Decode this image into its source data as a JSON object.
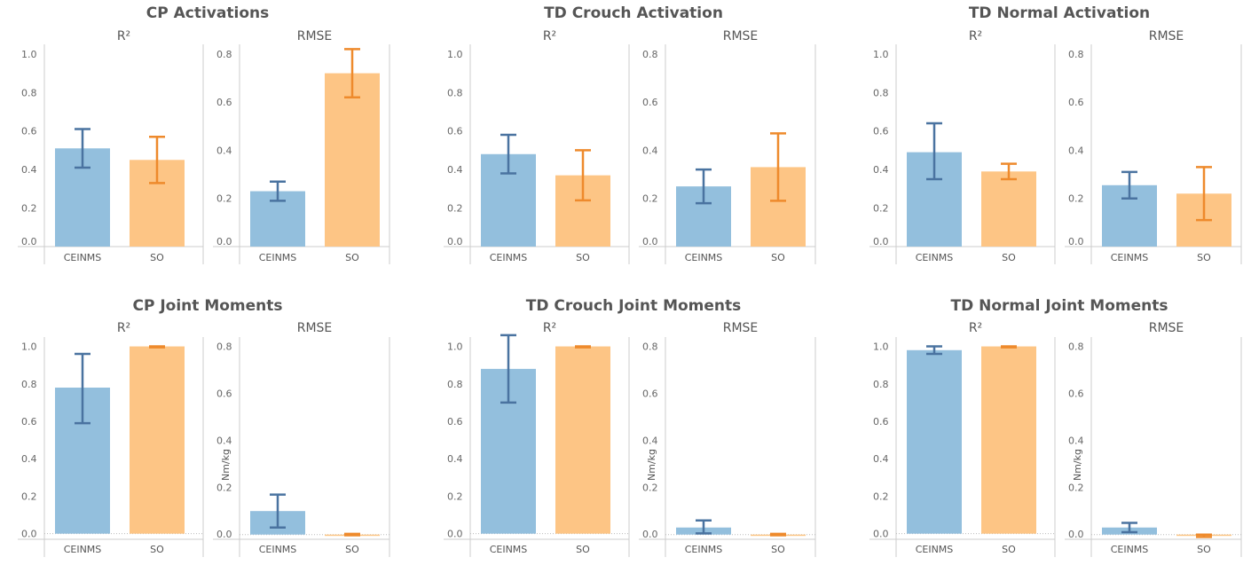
{
  "colors": {
    "ceinms_bar": "#93BFDD",
    "ceinms_err": "#4A73A0",
    "so_bar": "#FDC585",
    "so_err": "#EE8A2C",
    "axis": "#cccccc",
    "text": "#555555"
  },
  "chart_data": [
    {
      "type": "bar",
      "title": "CP Activations",
      "panels": [
        {
          "title": "R²",
          "ylabel": "",
          "ylim": [
            0,
            1.05
          ],
          "yticks": [
            "0.0",
            "0.2",
            "0.4",
            "0.6",
            "0.8",
            "1.0"
          ],
          "categories": [
            "CEINMS",
            "SO"
          ],
          "values": [
            0.51,
            0.45
          ],
          "err_low": [
            0.41,
            0.33
          ],
          "err_high": [
            0.61,
            0.57
          ]
        },
        {
          "title": "RMSE",
          "ylabel": "",
          "ylim": [
            0,
            0.84
          ],
          "yticks": [
            "0.0",
            "0.2",
            "0.4",
            "0.6",
            "0.8"
          ],
          "categories": [
            "CEINMS",
            "SO"
          ],
          "values": [
            0.23,
            0.72
          ],
          "err_low": [
            0.19,
            0.62
          ],
          "err_high": [
            0.27,
            0.82
          ]
        }
      ]
    },
    {
      "type": "bar",
      "title": "TD Crouch Activation",
      "panels": [
        {
          "title": "R²",
          "ylabel": "",
          "ylim": [
            0,
            1.05
          ],
          "yticks": [
            "0.0",
            "0.2",
            "0.4",
            "0.6",
            "0.8",
            "1.0"
          ],
          "categories": [
            "CEINMS",
            "SO"
          ],
          "values": [
            0.48,
            0.37
          ],
          "err_low": [
            0.38,
            0.24
          ],
          "err_high": [
            0.58,
            0.5
          ]
        },
        {
          "title": "RMSE",
          "ylabel": "",
          "ylim": [
            0,
            0.84
          ],
          "yticks": [
            "0.0",
            "0.2",
            "0.4",
            "0.6",
            "0.8"
          ],
          "categories": [
            "CEINMS",
            "SO"
          ],
          "values": [
            0.25,
            0.33
          ],
          "err_low": [
            0.18,
            0.19
          ],
          "err_high": [
            0.32,
            0.47
          ]
        }
      ]
    },
    {
      "type": "bar",
      "title": "TD Normal Activation",
      "panels": [
        {
          "title": "R²",
          "ylabel": "",
          "ylim": [
            0,
            1.05
          ],
          "yticks": [
            "0.0",
            "0.2",
            "0.4",
            "0.6",
            "0.8",
            "1.0"
          ],
          "categories": [
            "CEINMS",
            "SO"
          ],
          "values": [
            0.49,
            0.39
          ],
          "err_low": [
            0.35,
            0.35
          ],
          "err_high": [
            0.64,
            0.43
          ]
        },
        {
          "title": "RMSE",
          "ylabel": "",
          "ylim": [
            0,
            0.84
          ],
          "yticks": [
            "0.0",
            "0.2",
            "0.4",
            "0.6",
            "0.8"
          ],
          "categories": [
            "CEINMS",
            "SO"
          ],
          "values": [
            0.255,
            0.22
          ],
          "err_low": [
            0.2,
            0.11
          ],
          "err_high": [
            0.31,
            0.33
          ]
        }
      ]
    },
    {
      "type": "bar",
      "title": "CP Joint Moments",
      "panels": [
        {
          "title": "R²",
          "ylabel": "",
          "ylim": [
            -0.03,
            1.05
          ],
          "yticks": [
            "0.0",
            "0.2",
            "0.4",
            "0.6",
            "0.8",
            "1.0"
          ],
          "categories": [
            "CEINMS",
            "SO"
          ],
          "values": [
            0.78,
            1.0
          ],
          "err_low": [
            0.59,
            0.995
          ],
          "err_high": [
            0.96,
            1.0
          ]
        },
        {
          "title": "RMSE",
          "ylabel": "Nm/kg",
          "ylim": [
            -0.02,
            0.84
          ],
          "yticks": [
            "0.0",
            "0.2",
            "0.4",
            "0.6",
            "0.8"
          ],
          "categories": [
            "CEINMS",
            "SO"
          ],
          "values": [
            0.1,
            0.0
          ],
          "err_low": [
            0.03,
            -0.003
          ],
          "err_high": [
            0.17,
            0.003
          ]
        }
      ]
    },
    {
      "type": "bar",
      "title": "TD Crouch Joint Moments",
      "panels": [
        {
          "title": "R²",
          "ylabel": "",
          "ylim": [
            -0.03,
            1.05
          ],
          "yticks": [
            "0.0",
            "0.2",
            "0.4",
            "0.6",
            "0.8",
            "1.0"
          ],
          "categories": [
            "CEINMS",
            "SO"
          ],
          "values": [
            0.88,
            1.0
          ],
          "err_low": [
            0.7,
            0.995
          ],
          "err_high": [
            1.06,
            1.0
          ]
        },
        {
          "title": "RMSE",
          "ylabel": "Nm/kg",
          "ylim": [
            -0.02,
            0.84
          ],
          "yticks": [
            "0.0",
            "0.2",
            "0.4",
            "0.6",
            "0.8"
          ],
          "categories": [
            "CEINMS",
            "SO"
          ],
          "values": [
            0.03,
            0.0
          ],
          "err_low": [
            0.005,
            -0.003
          ],
          "err_high": [
            0.06,
            0.003
          ]
        }
      ]
    },
    {
      "type": "bar",
      "title": "TD Normal Joint Moments",
      "panels": [
        {
          "title": "R²",
          "ylabel": "",
          "ylim": [
            -0.03,
            1.05
          ],
          "yticks": [
            "0.0",
            "0.2",
            "0.4",
            "0.6",
            "0.8",
            "1.0"
          ],
          "categories": [
            "CEINMS",
            "SO"
          ],
          "values": [
            0.98,
            1.0
          ],
          "err_low": [
            0.96,
            0.995
          ],
          "err_high": [
            1.0,
            1.0
          ]
        },
        {
          "title": "RMSE",
          "ylabel": "Nm/kg",
          "ylim": [
            -0.02,
            0.84
          ],
          "yticks": [
            "0.0",
            "0.2",
            "0.4",
            "0.6",
            "0.8"
          ],
          "categories": [
            "CEINMS",
            "SO"
          ],
          "values": [
            0.03,
            -0.005
          ],
          "err_low": [
            0.01,
            -0.01
          ],
          "err_high": [
            0.05,
            0.0
          ]
        }
      ]
    }
  ]
}
